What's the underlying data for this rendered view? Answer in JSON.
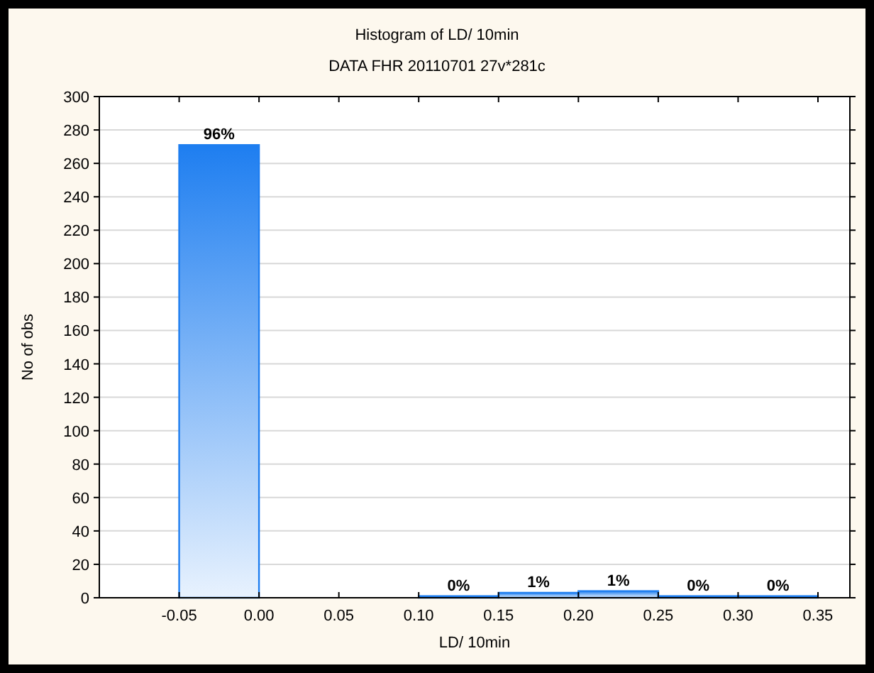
{
  "chart_data": {
    "type": "histogram",
    "title": "Histogram of LD/ 10min",
    "subtitle": "DATA FHR 20110701 27v*281c",
    "xlabel": "LD/ 10min",
    "ylabel": "No of obs",
    "bins": [
      -0.05,
      0,
      0.05,
      0.1,
      0.15,
      0.2,
      0.25,
      0.3,
      0.35
    ],
    "values": [
      271,
      0,
      0,
      1,
      3,
      4,
      1,
      1
    ],
    "annotations": [
      {
        "text": "96%",
        "x": -0.025,
        "y": 271
      },
      {
        "text": "0%",
        "x": 0.125,
        "y": 1
      },
      {
        "text": "1%",
        "x": 0.175,
        "y": 3
      },
      {
        "text": "1%",
        "x": 0.225,
        "y": 4
      },
      {
        "text": "0%",
        "x": 0.275,
        "y": 1
      },
      {
        "text": "0%",
        "x": 0.325,
        "y": 1
      }
    ],
    "color": "#1e7ef0",
    "xlim": [
      -0.1,
      0.37
    ],
    "xticks": [
      {
        "value": -0.05,
        "label": "-0.05"
      },
      {
        "value": 0,
        "label": "0.00"
      },
      {
        "value": 0.05,
        "label": "0.05"
      },
      {
        "value": 0.1,
        "label": "0.10"
      },
      {
        "value": 0.15,
        "label": "0.15"
      },
      {
        "value": 0.2,
        "label": "0.20"
      },
      {
        "value": 0.25,
        "label": "0.25"
      },
      {
        "value": 0.3,
        "label": "0.30"
      },
      {
        "value": 0.35,
        "label": "0.35"
      }
    ],
    "ylim": [
      0,
      300
    ],
    "yticks": [
      0,
      20,
      40,
      60,
      80,
      100,
      120,
      140,
      160,
      180,
      200,
      220,
      240,
      260,
      280,
      300
    ],
    "grid": "y"
  }
}
